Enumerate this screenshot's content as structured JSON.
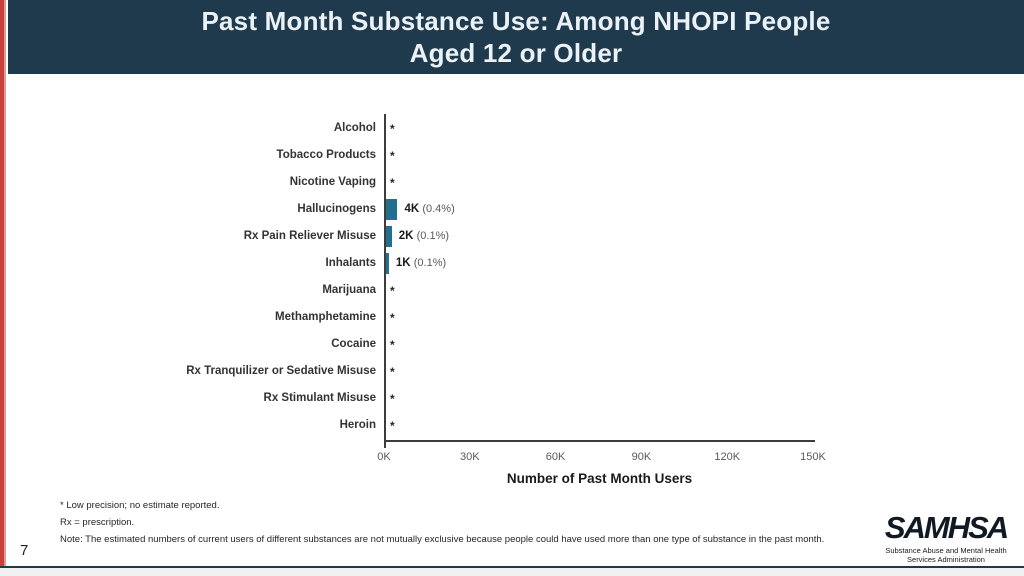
{
  "header": {
    "title_line1": "Past Month Substance Use: Among NHOPI People",
    "title_line2": "Aged 12 or Older"
  },
  "chart_data": {
    "type": "bar",
    "orientation": "horizontal",
    "title": "Past Month Substance Use: Among NHOPI People Aged 12 or Older",
    "categories": [
      "Alcohol",
      "Tobacco Products",
      "Nicotine Vaping",
      "Hallucinogens",
      "Rx Pain Reliever Misuse",
      "Inhalants",
      "Marijuana",
      "Methamphetamine",
      "Cocaine",
      "Rx Tranquilizer or Sedative Misuse",
      "Rx Stimulant Misuse",
      "Heroin"
    ],
    "values_thousands": [
      null,
      null,
      null,
      4,
      2,
      1,
      null,
      null,
      null,
      null,
      null,
      null
    ],
    "value_labels": [
      "*",
      "*",
      "*",
      "4K",
      "2K",
      "1K",
      "*",
      "*",
      "*",
      "*",
      "*",
      "*"
    ],
    "pct_labels": [
      "",
      "",
      "",
      "(0.4%)",
      "(0.1%)",
      "(0.1%)",
      "",
      "",
      "",
      "",
      "",
      ""
    ],
    "xlabel": "Number of Past Month Users",
    "x_ticks": [
      "0K",
      "30K",
      "60K",
      "90K",
      "120K",
      "150K"
    ],
    "xlim_thousands": [
      0,
      150
    ],
    "grid": false,
    "legend": false,
    "bar_color": "#21708E"
  },
  "footnotes": {
    "low_precision": "* Low precision; no estimate reported.",
    "rx": "Rx = prescription.",
    "note": "Note: The estimated numbers of current users of different substances are not mutually exclusive because people could have used more than one type of substance in the past month."
  },
  "page": {
    "number": "7"
  },
  "logo": {
    "name": "SAMHSA",
    "tagline_line1": "Substance Abuse and Mental Health",
    "tagline_line2": "Services Administration"
  },
  "colors": {
    "header_bg": "#1F3A4D",
    "header_text": "#EAF2F7",
    "accent_stripe": "#C8423B",
    "bar": "#21708E",
    "axis_line": "#3D3D3D",
    "category_label": "#333333",
    "tick_label": "#595959",
    "pct_label": "#595959",
    "footnote_text": "#262626"
  }
}
